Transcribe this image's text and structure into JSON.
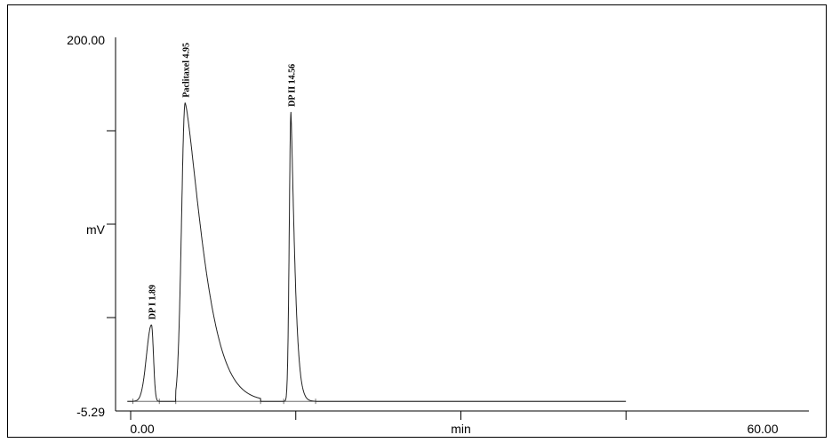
{
  "chart_data": {
    "type": "line",
    "title": "",
    "xlabel": "min",
    "ylabel": "mV",
    "xlim": [
      0,
      60
    ],
    "ylim": [
      -5.29,
      200
    ],
    "y_tick_labels": [
      "200.00",
      "-5.29"
    ],
    "x_tick_labels": [
      "0.00",
      "min",
      "60.00"
    ],
    "x_ticks": [
      0,
      15,
      30,
      45
    ],
    "y_ticks": [
      46.03,
      97.35,
      148.68
    ],
    "grid": false,
    "baseline": 0,
    "trace_end": 45,
    "series": [
      {
        "peaks": [
          {
            "label": "DP I  1.89",
            "time": 1.89,
            "height": 42,
            "start": 0.2,
            "end": 2.6,
            "tail_end": 2.6
          },
          {
            "label": "Paclitaxel  4.95",
            "time": 4.95,
            "height": 164,
            "start": 4.1,
            "end": 11.8,
            "tail_end": 11.8
          },
          {
            "label": "DP II  14.56",
            "time": 14.56,
            "height": 159,
            "start": 13.9,
            "end": 16.8,
            "tail_end": 16.8
          }
        ]
      }
    ]
  }
}
